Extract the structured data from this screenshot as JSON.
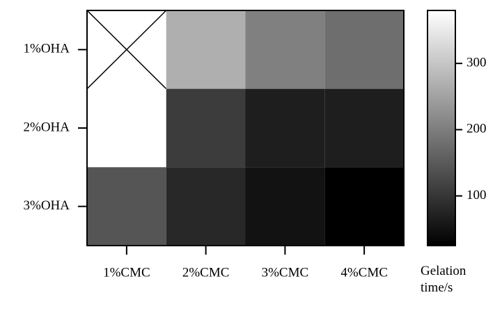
{
  "chart_data": {
    "type": "heatmap",
    "x_categories": [
      "1%CMC",
      "2%CMC",
      "3%CMC",
      "4%CMC"
    ],
    "y_categories": [
      "1%OHA",
      "2%OHA",
      "3%OHA"
    ],
    "values": [
      [
        null,
        269,
        203,
        178
      ],
      [
        380,
        109,
        67,
        67
      ],
      [
        143,
        81,
        50,
        25
      ]
    ],
    "colorbar_label": "Gelation time/s",
    "zlim": [
      25,
      380
    ],
    "zticks": [
      100,
      200,
      300
    ],
    "colormap": [
      "#000000",
      "#ffffff"
    ]
  }
}
